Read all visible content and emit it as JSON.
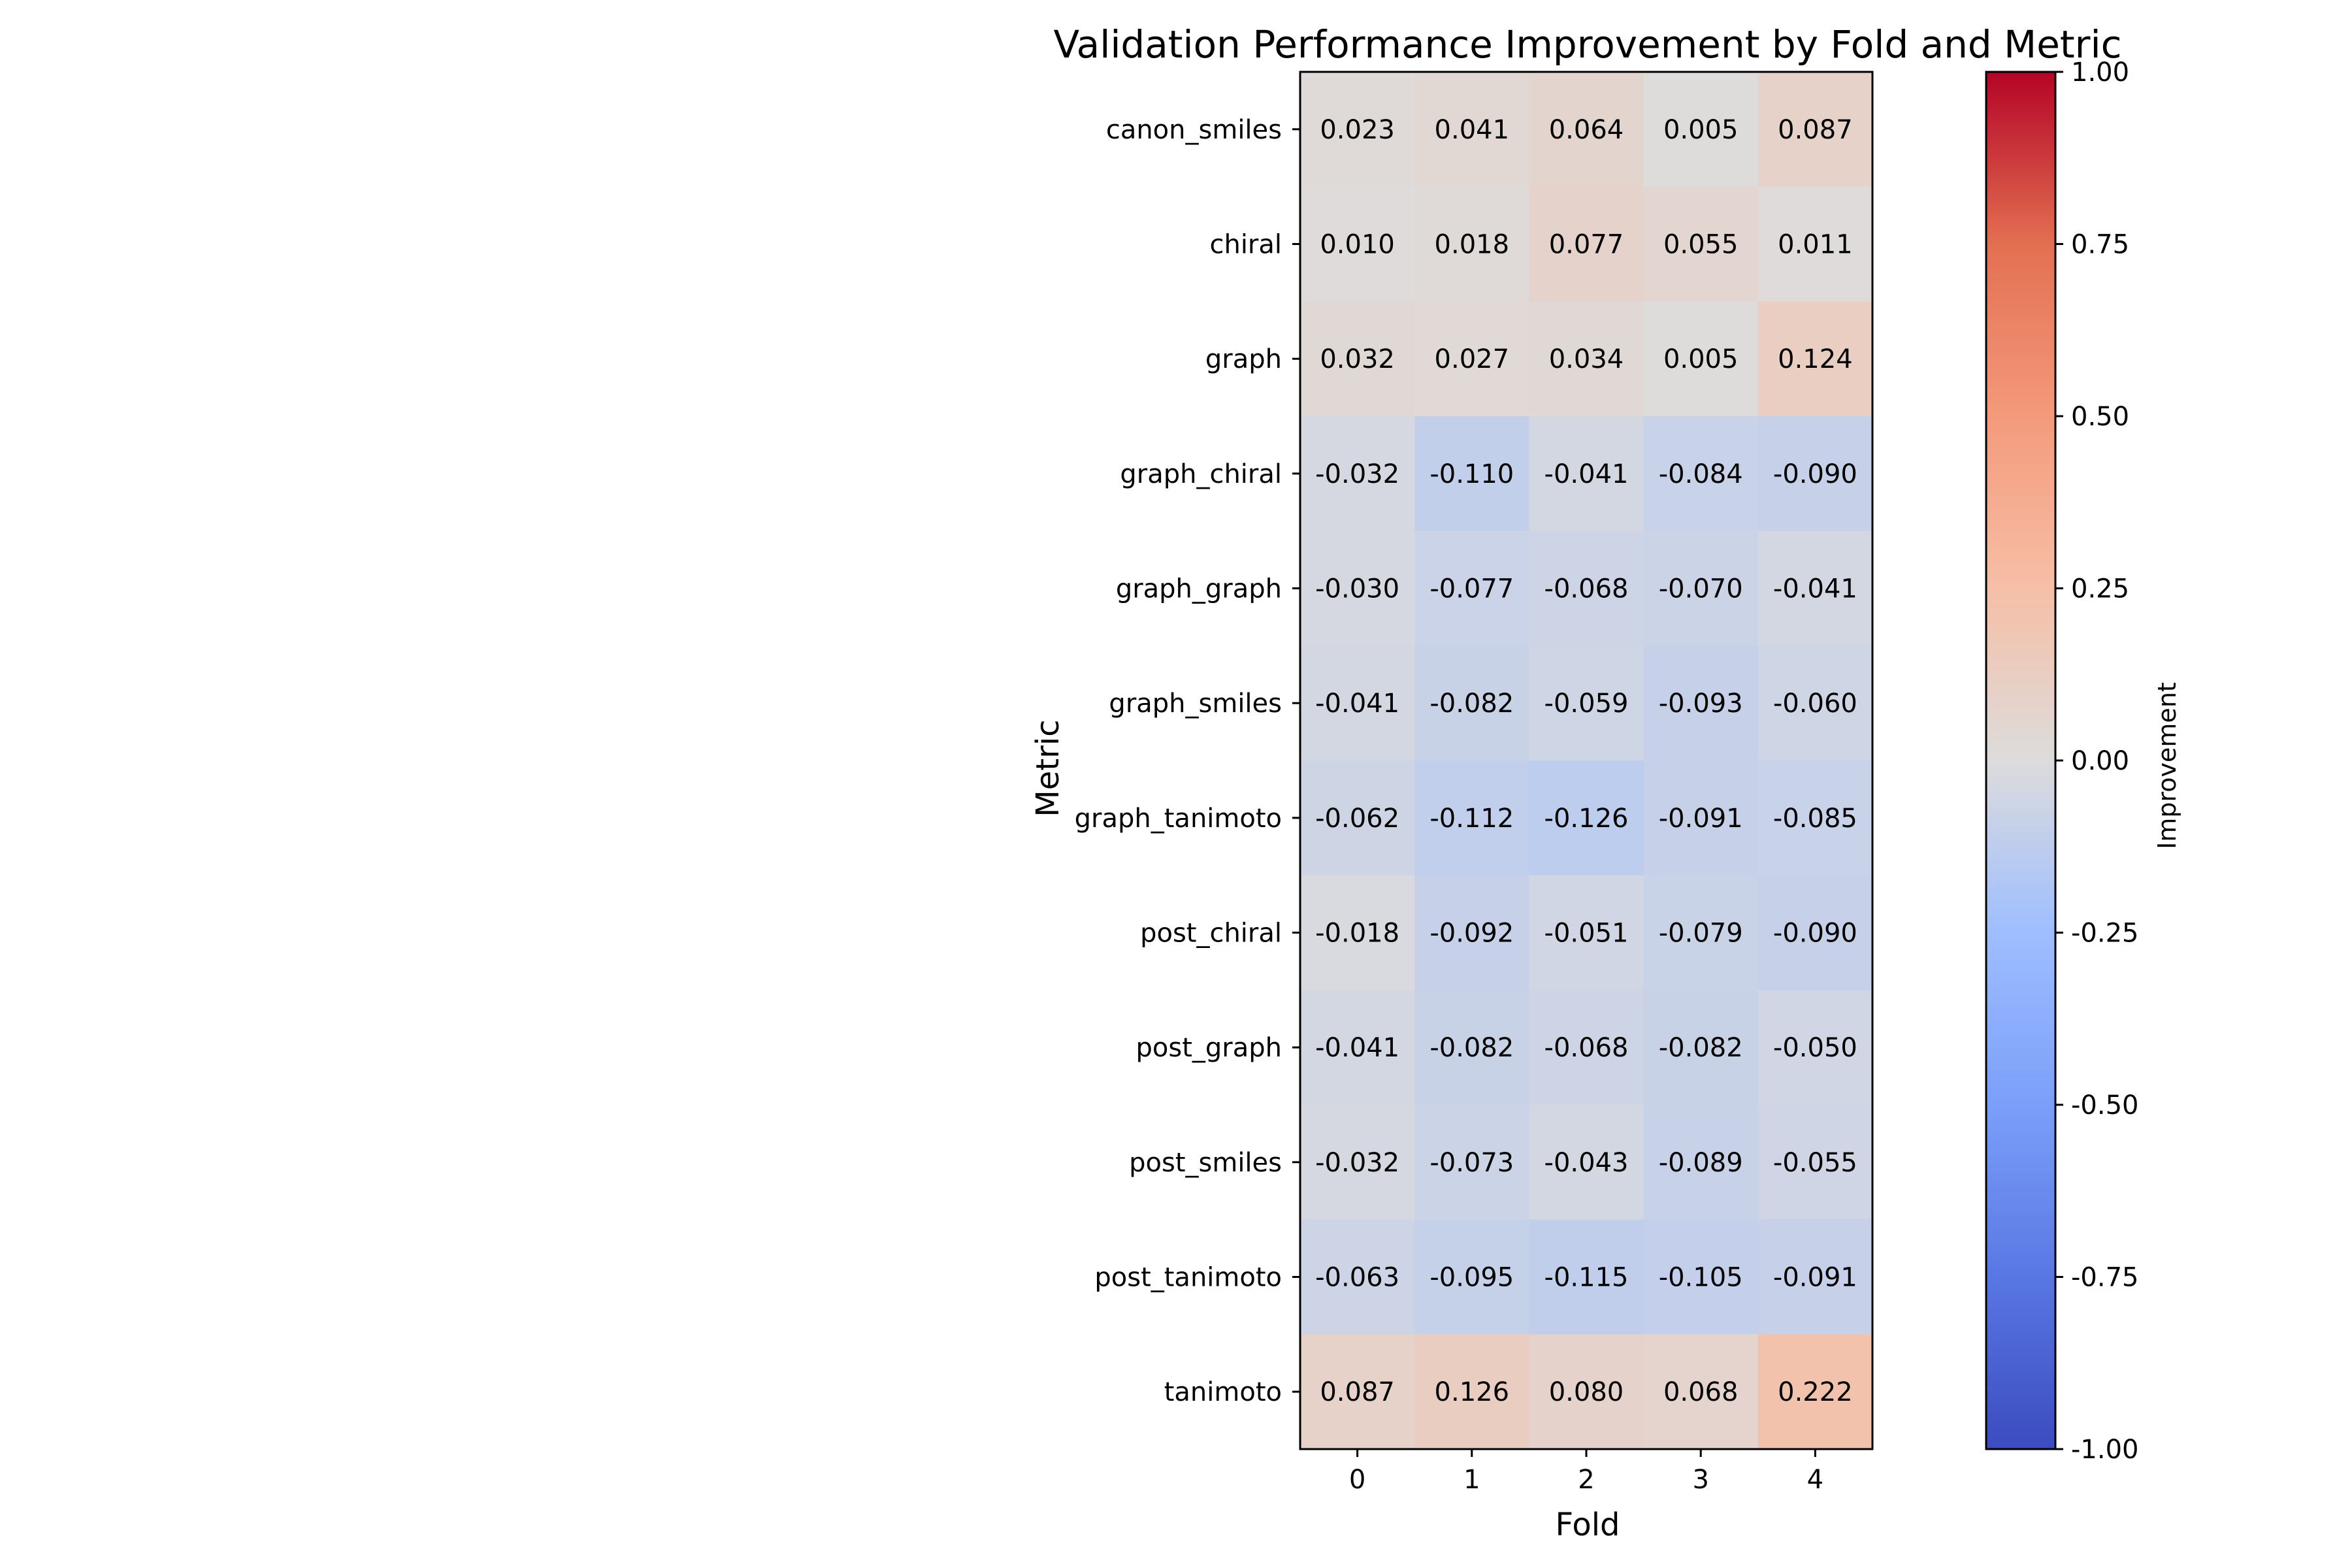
{
  "chart_data": {
    "type": "heatmap",
    "title": "Validation Performance Improvement by Fold and Metric",
    "xlabel": "Fold",
    "ylabel": "Metric",
    "x_categories": [
      "0",
      "1",
      "2",
      "3",
      "4"
    ],
    "y_categories": [
      "canon_smiles",
      "chiral",
      "graph",
      "graph_chiral",
      "graph_graph",
      "graph_smiles",
      "graph_tanimoto",
      "post_chiral",
      "post_graph",
      "post_smiles",
      "post_tanimoto",
      "tanimoto"
    ],
    "values": [
      [
        0.023,
        0.041,
        0.064,
        0.005,
        0.087
      ],
      [
        0.01,
        0.018,
        0.077,
        0.055,
        0.011
      ],
      [
        0.032,
        0.027,
        0.034,
        0.005,
        0.124
      ],
      [
        -0.032,
        -0.11,
        -0.041,
        -0.084,
        -0.09
      ],
      [
        -0.03,
        -0.077,
        -0.068,
        -0.07,
        -0.041
      ],
      [
        -0.041,
        -0.082,
        -0.059,
        -0.093,
        -0.06
      ],
      [
        -0.062,
        -0.112,
        -0.126,
        -0.091,
        -0.085
      ],
      [
        -0.018,
        -0.092,
        -0.051,
        -0.079,
        -0.09
      ],
      [
        -0.041,
        -0.082,
        -0.068,
        -0.082,
        -0.05
      ],
      [
        -0.032,
        -0.073,
        -0.043,
        -0.089,
        -0.055
      ],
      [
        -0.063,
        -0.095,
        -0.115,
        -0.105,
        -0.091
      ],
      [
        0.087,
        0.126,
        0.08,
        0.068,
        0.222
      ]
    ],
    "colormap": "coolwarm",
    "vmin": -1.0,
    "vmax": 1.0,
    "colorbar": {
      "label": "Improvement",
      "ticks": [
        1.0,
        0.75,
        0.5,
        0.25,
        0.0,
        -0.25,
        -0.5,
        -0.75,
        -1.0
      ],
      "tick_labels": [
        "1.00",
        "0.75",
        "0.50",
        "0.25",
        "0.00",
        "-0.25",
        "-0.50",
        "-0.75",
        "-1.00"
      ]
    },
    "value_format": "3 decimals"
  }
}
